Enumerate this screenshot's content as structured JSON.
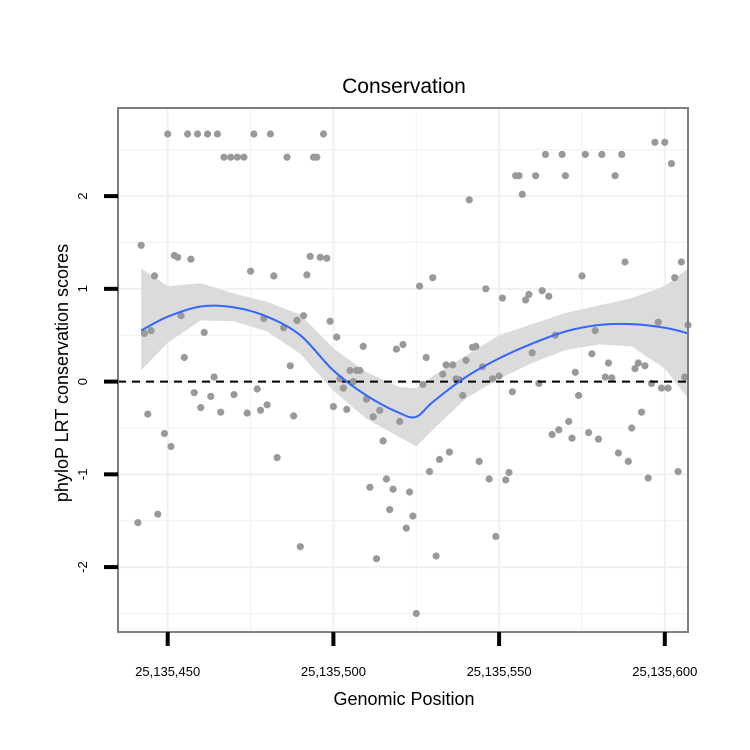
{
  "chart_data": {
    "type": "scatter",
    "title": "Conservation",
    "xlabel": "Genomic Position",
    "ylabel": "phyloP LRT conservation scores",
    "xlim": [
      25135435,
      25135607
    ],
    "ylim": [
      -2.7,
      2.95
    ],
    "x_ticks": [
      25135450,
      25135500,
      25135550,
      25135600
    ],
    "x_tick_labels": [
      "25,135,450",
      "25,135,500",
      "25,135,550",
      "25,135,600"
    ],
    "y_ticks": [
      -2,
      -1,
      0,
      1,
      2
    ],
    "y_tick_labels": [
      "-2",
      "-1",
      "0",
      "1",
      "2"
    ],
    "grid": true,
    "reference_line": {
      "y": 0,
      "style": "dashed"
    },
    "colors": {
      "points": "#999999",
      "smooth": "#3366ff",
      "ribbon": "#d9d9d9",
      "grid": "#f0f0f0",
      "border": "#7f7f7f"
    },
    "points": [
      [
        25135442,
        1.47
      ],
      [
        25135443,
        0.52
      ],
      [
        25135445,
        0.55
      ],
      [
        25135446,
        1.14
      ],
      [
        25135449,
        -0.56
      ],
      [
        25135451,
        -0.7
      ],
      [
        25135450,
        2.67
      ],
      [
        25135452,
        1.36
      ],
      [
        25135453,
        1.34
      ],
      [
        25135454,
        0.71
      ],
      [
        25135455,
        0.26
      ],
      [
        25135456,
        2.67
      ],
      [
        25135457,
        1.32
      ],
      [
        25135458,
        -0.12
      ],
      [
        25135459,
        2.67
      ],
      [
        25135460,
        -0.28
      ],
      [
        25135461,
        0.53
      ],
      [
        25135462,
        2.67
      ],
      [
        25135463,
        -0.16
      ],
      [
        25135464,
        0.05
      ],
      [
        25135465,
        2.67
      ],
      [
        25135466,
        -0.33
      ],
      [
        25135467,
        2.42
      ],
      [
        25135469,
        2.42
      ],
      [
        25135470,
        -0.14
      ],
      [
        25135471,
        2.42
      ],
      [
        25135473,
        2.42
      ],
      [
        25135474,
        -0.34
      ],
      [
        25135475,
        1.19
      ],
      [
        25135476,
        2.67
      ],
      [
        25135477,
        -0.08
      ],
      [
        25135478,
        -0.31
      ],
      [
        25135479,
        0.68
      ],
      [
        25135480,
        -0.25
      ],
      [
        25135481,
        2.67
      ],
      [
        25135482,
        1.14
      ],
      [
        25135483,
        -0.82
      ],
      [
        25135485,
        0.58
      ],
      [
        25135486,
        2.42
      ],
      [
        25135487,
        0.17
      ],
      [
        25135488,
        -0.37
      ],
      [
        25135489,
        0.66
      ],
      [
        25135490,
        -1.78
      ],
      [
        25135491,
        0.71
      ],
      [
        25135492,
        1.15
      ],
      [
        25135493,
        1.35
      ],
      [
        25135494,
        2.42
      ],
      [
        25135495,
        2.42
      ],
      [
        25135496,
        1.34
      ],
      [
        25135497,
        2.67
      ],
      [
        25135498,
        1.33
      ],
      [
        25135499,
        0.65
      ],
      [
        25135500,
        -0.27
      ],
      [
        25135501,
        0.48
      ],
      [
        25135502,
        0.03
      ],
      [
        25135503,
        -0.07
      ],
      [
        25135504,
        -0.3
      ],
      [
        25135505,
        0.12
      ],
      [
        25135506,
        0.0
      ],
      [
        25135507,
        0.12
      ],
      [
        25135508,
        0.12
      ],
      [
        25135509,
        0.38
      ],
      [
        25135510,
        -0.19
      ],
      [
        25135511,
        -1.14
      ],
      [
        25135512,
        -0.38
      ],
      [
        25135513,
        -1.91
      ],
      [
        25135514,
        -0.31
      ],
      [
        25135515,
        -0.64
      ],
      [
        25135516,
        -1.05
      ],
      [
        25135517,
        -1.38
      ],
      [
        25135518,
        -1.16
      ],
      [
        25135519,
        0.35
      ],
      [
        25135520,
        -0.43
      ],
      [
        25135521,
        0.4
      ],
      [
        25135522,
        -1.58
      ],
      [
        25135523,
        -1.19
      ],
      [
        25135524,
        -1.45
      ],
      [
        25135525,
        -2.5
      ],
      [
        25135526,
        1.03
      ],
      [
        25135527,
        -0.03
      ],
      [
        25135528,
        0.26
      ],
      [
        25135529,
        -0.97
      ],
      [
        25135530,
        1.12
      ],
      [
        25135531,
        -1.88
      ],
      [
        25135532,
        -0.84
      ],
      [
        25135533,
        0.08
      ],
      [
        25135534,
        0.18
      ],
      [
        25135535,
        -0.76
      ],
      [
        25135536,
        0.18
      ],
      [
        25135537,
        0.03
      ],
      [
        25135538,
        0.02
      ],
      [
        25135539,
        -0.15
      ],
      [
        25135540,
        0.23
      ],
      [
        25135541,
        1.96
      ],
      [
        25135542,
        0.37
      ],
      [
        25135543,
        0.38
      ],
      [
        25135544,
        -0.86
      ],
      [
        25135545,
        0.16
      ],
      [
        25135546,
        1.0
      ],
      [
        25135547,
        -1.05
      ],
      [
        25135548,
        0.03
      ],
      [
        25135549,
        -1.67
      ],
      [
        25135550,
        0.06
      ],
      [
        25135551,
        0.9
      ],
      [
        25135552,
        -1.06
      ],
      [
        25135553,
        -0.98
      ],
      [
        25135554,
        -0.11
      ],
      [
        25135555,
        2.22
      ],
      [
        25135556,
        2.22
      ],
      [
        25135557,
        2.02
      ],
      [
        25135558,
        0.88
      ],
      [
        25135559,
        0.94
      ],
      [
        25135560,
        0.31
      ],
      [
        25135561,
        2.22
      ],
      [
        25135562,
        -0.02
      ],
      [
        25135563,
        0.98
      ],
      [
        25135564,
        2.45
      ],
      [
        25135565,
        0.92
      ],
      [
        25135566,
        -0.57
      ],
      [
        25135567,
        0.5
      ],
      [
        25135568,
        -0.52
      ],
      [
        25135569,
        2.45
      ],
      [
        25135570,
        2.22
      ],
      [
        25135571,
        -0.43
      ],
      [
        25135572,
        -0.61
      ],
      [
        25135573,
        0.1
      ],
      [
        25135574,
        -0.15
      ],
      [
        25135575,
        1.14
      ],
      [
        25135576,
        2.45
      ],
      [
        25135577,
        -0.55
      ],
      [
        25135578,
        0.3
      ],
      [
        25135579,
        0.55
      ],
      [
        25135580,
        -0.62
      ],
      [
        25135581,
        2.45
      ],
      [
        25135582,
        0.05
      ],
      [
        25135583,
        0.2
      ],
      [
        25135584,
        0.04
      ],
      [
        25135585,
        2.22
      ],
      [
        25135586,
        -0.77
      ],
      [
        25135587,
        2.45
      ],
      [
        25135588,
        1.29
      ],
      [
        25135589,
        -0.86
      ],
      [
        25135590,
        -0.5
      ],
      [
        25135591,
        0.14
      ],
      [
        25135592,
        0.2
      ],
      [
        25135593,
        -0.33
      ],
      [
        25135594,
        0.17
      ],
      [
        25135595,
        -1.04
      ],
      [
        25135596,
        -0.02
      ],
      [
        25135597,
        2.58
      ],
      [
        25135598,
        0.64
      ],
      [
        25135599,
        -0.07
      ],
      [
        25135600,
        2.58
      ],
      [
        25135601,
        -0.07
      ],
      [
        25135602,
        2.35
      ],
      [
        25135603,
        1.12
      ],
      [
        25135604,
        -0.97
      ],
      [
        25135605,
        1.29
      ],
      [
        25135606,
        0.05
      ],
      [
        25135607,
        0.61
      ],
      [
        25135441,
        -1.52
      ],
      [
        25135444,
        -0.35
      ],
      [
        25135447,
        -1.43
      ]
    ],
    "smooth": {
      "x": [
        25135442,
        25135450,
        25135460,
        25135470,
        25135480,
        25135490,
        25135500,
        25135510,
        25135520,
        25135525,
        25135530,
        25135540,
        25135550,
        25135560,
        25135570,
        25135580,
        25135590,
        25135600,
        25135607
      ],
      "y": [
        0.55,
        0.7,
        0.81,
        0.8,
        0.7,
        0.5,
        0.12,
        -0.15,
        -0.34,
        -0.38,
        -0.22,
        0.05,
        0.25,
        0.41,
        0.54,
        0.61,
        0.62,
        0.58,
        0.52
      ],
      "lower": [
        0.12,
        0.42,
        0.66,
        0.65,
        0.54,
        0.3,
        -0.1,
        -0.4,
        -0.6,
        -0.7,
        -0.52,
        -0.18,
        0.03,
        0.2,
        0.34,
        0.4,
        0.38,
        0.14,
        -0.18
      ],
      "upper": [
        1.22,
        1.03,
        1.06,
        0.95,
        0.86,
        0.72,
        0.36,
        0.1,
        -0.06,
        -0.07,
        0.06,
        0.28,
        0.5,
        0.62,
        0.74,
        0.82,
        0.9,
        1.03,
        1.22
      ]
    }
  }
}
